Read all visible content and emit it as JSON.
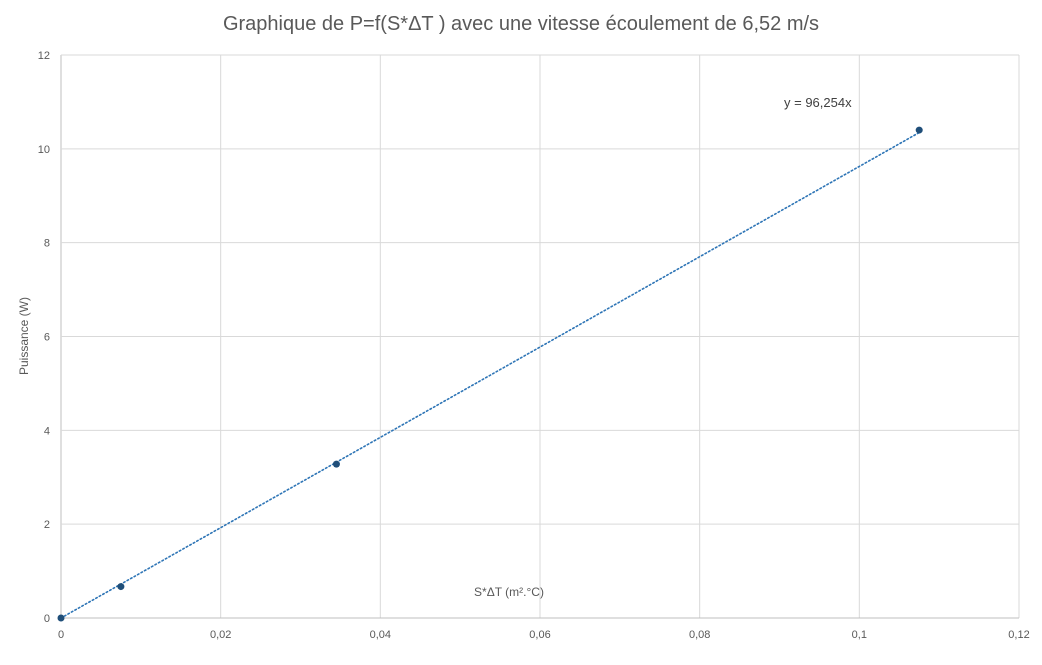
{
  "chart_data": {
    "type": "scatter",
    "title": "Graphique de P=f(S*ΔT ) avec une vitesse écoulement de 6,52 m/s",
    "xlabel": "S*ΔT (m².°C)",
    "ylabel": "Puissance (W)",
    "xlim": [
      0,
      0.12
    ],
    "ylim": [
      0,
      12
    ],
    "x_ticks": [
      "0",
      "0,02",
      "0,04",
      "0,06",
      "0,08",
      "0,1",
      "0,12"
    ],
    "y_ticks": [
      "0",
      "2",
      "4",
      "6",
      "8",
      "10",
      "12"
    ],
    "grid": true,
    "series": [
      {
        "points": [
          {
            "x": 0,
            "y": 0
          },
          {
            "x": 0.0075,
            "y": 0.67
          },
          {
            "x": 0.0345,
            "y": 3.28
          },
          {
            "x": 0.1075,
            "y": 10.4
          }
        ],
        "color": "#1f4e79"
      }
    ],
    "trendline": {
      "type": "linear",
      "slope": 96.254,
      "intercept": 0,
      "x_range": [
        0,
        0.1075
      ],
      "equation": "y = 96,254x",
      "color": "#2e75b6",
      "style": "dotted"
    }
  }
}
